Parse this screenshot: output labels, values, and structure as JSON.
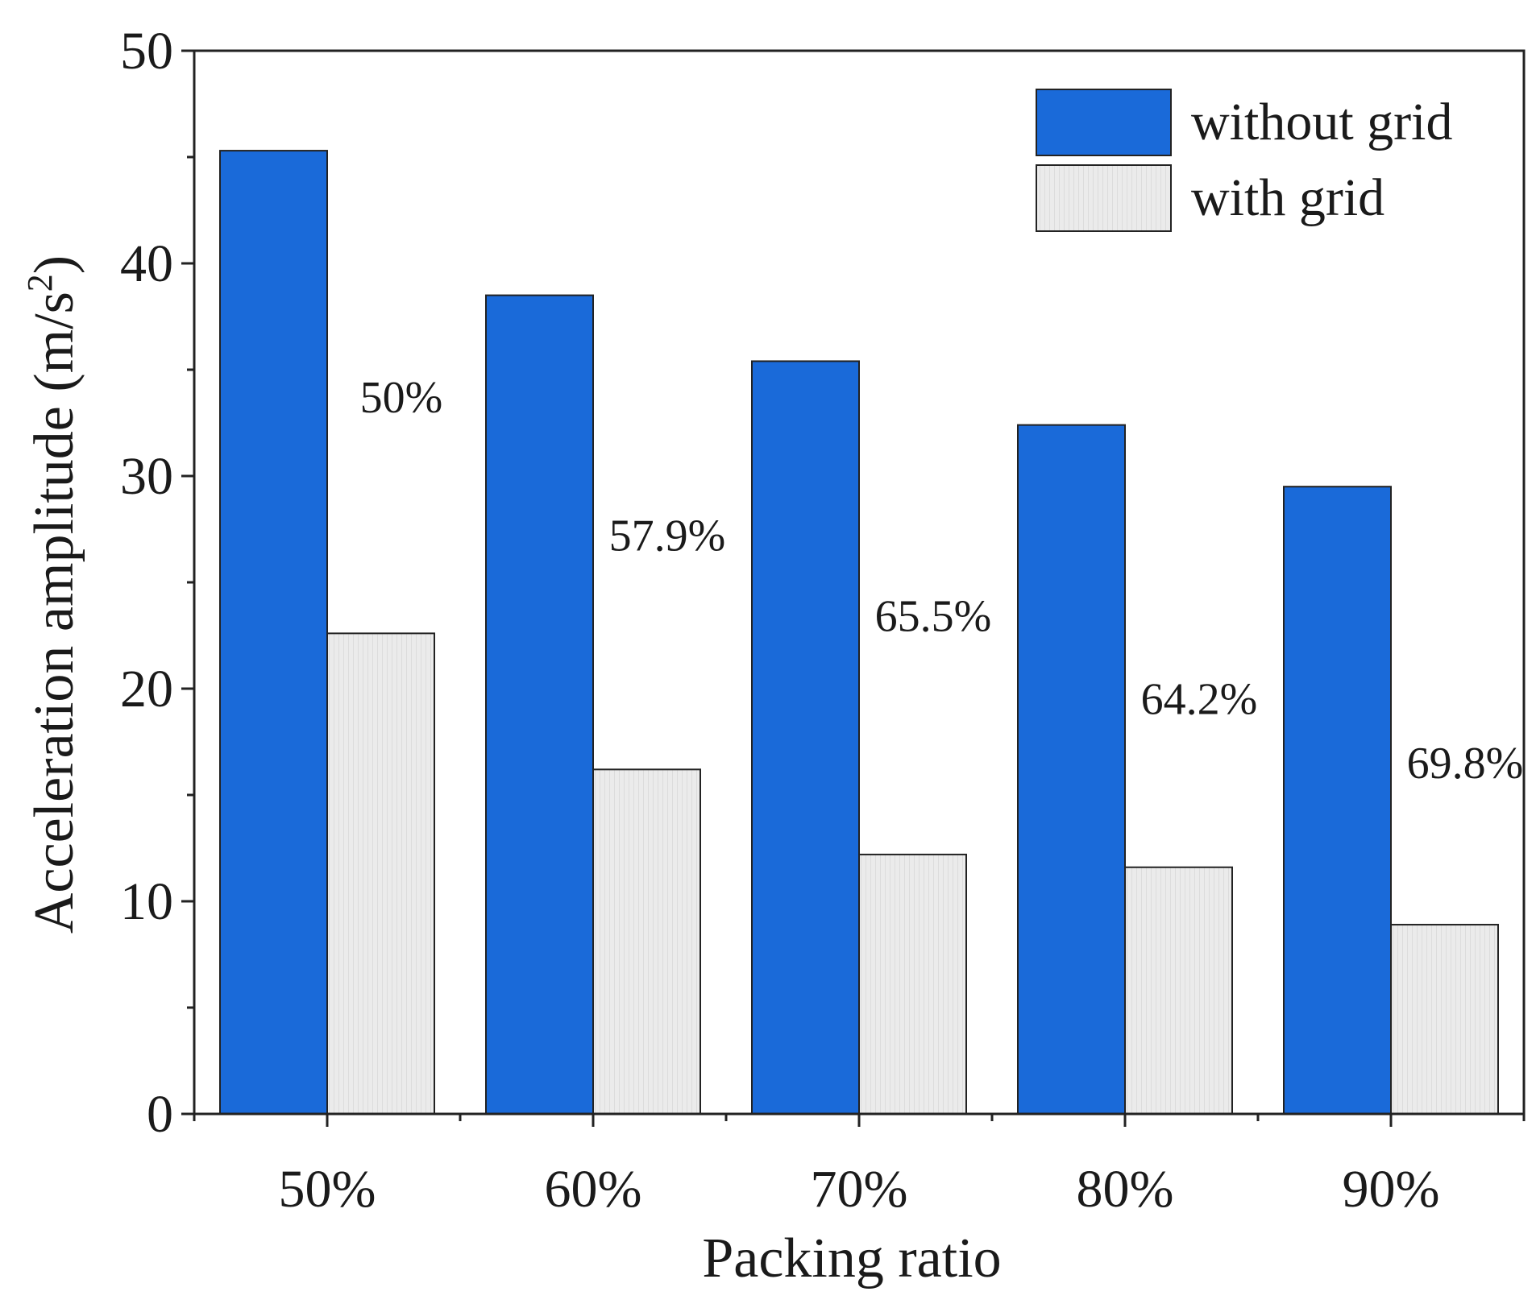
{
  "chart_data": {
    "type": "bar",
    "title": "",
    "xlabel": "Packing ratio",
    "ylabel": "Acceleration amplitude (m/s",
    "ylabel_superscript": "2",
    "ylabel_suffix": ")",
    "categories": [
      "50%",
      "60%",
      "70%",
      "80%",
      "90%"
    ],
    "series": [
      {
        "name": "without grid",
        "color": "#1a6ad9",
        "values": [
          45.3,
          38.5,
          35.4,
          32.4,
          29.5
        ]
      },
      {
        "name": "with grid",
        "color": "#ebebeb",
        "values": [
          22.6,
          16.2,
          12.2,
          11.6,
          8.9
        ]
      }
    ],
    "annotations": [
      "50%",
      "57.9%",
      "65.5%",
      "64.2%",
      "69.8%"
    ],
    "annotation_values": [
      33.0,
      26.5,
      22.7,
      18.8,
      15.8
    ],
    "ylim": [
      0,
      50
    ],
    "yticks": [
      0,
      10,
      20,
      30,
      40,
      50
    ],
    "legend_position": "top-right",
    "grid": false
  }
}
